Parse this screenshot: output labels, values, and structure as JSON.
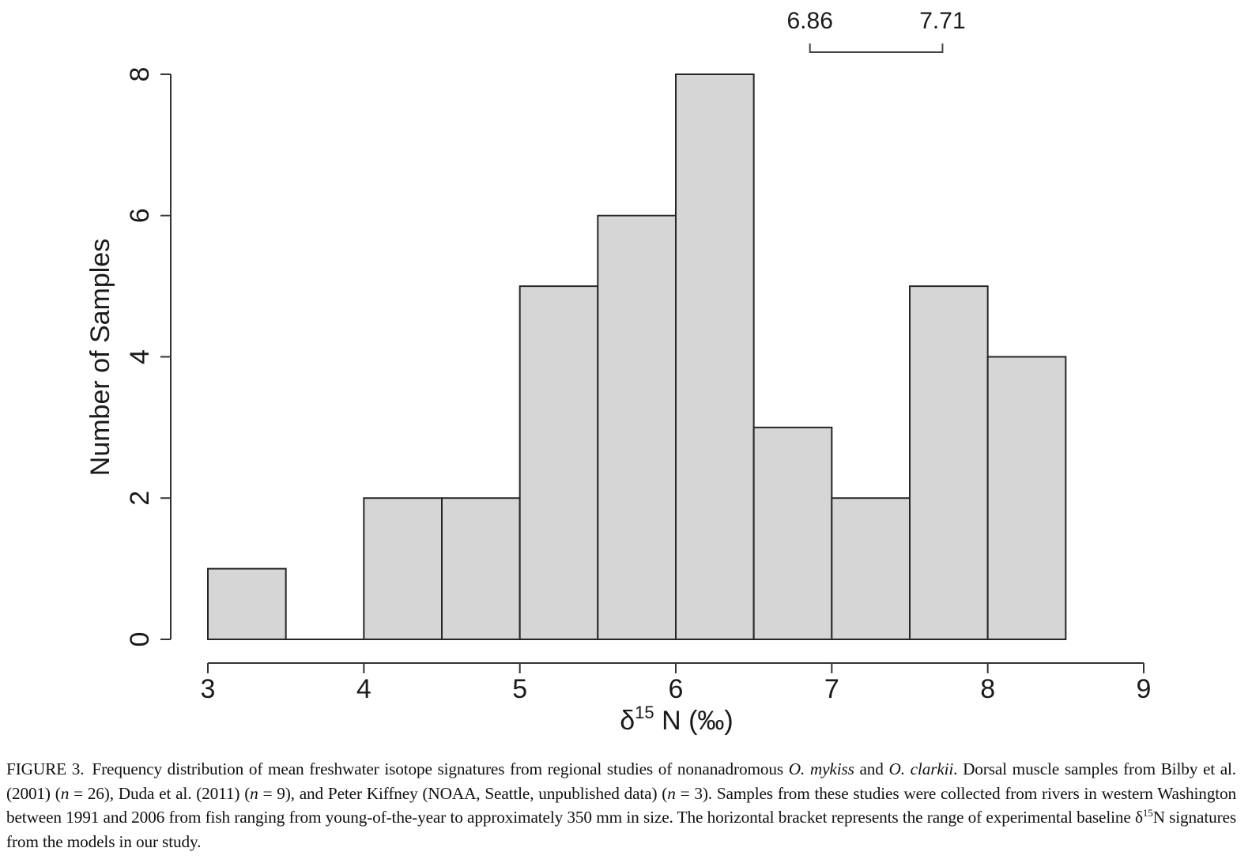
{
  "chart_data": {
    "type": "bar",
    "subtype": "histogram",
    "title": "",
    "xlabel": "δ15 N (‰)",
    "xlabel_parts": {
      "delta": "δ",
      "superscript": "15",
      "rest": " N (‰)"
    },
    "ylabel": "Number of Samples",
    "xlim": [
      3,
      9
    ],
    "ylim": [
      0,
      8
    ],
    "x_ticks": [
      3,
      4,
      5,
      6,
      7,
      8,
      9
    ],
    "y_ticks": [
      0,
      2,
      4,
      6,
      8
    ],
    "bin_width": 0.5,
    "bin_edges": [
      3.0,
      3.5,
      4.0,
      4.5,
      5.0,
      5.5,
      6.0,
      6.5,
      7.0,
      7.5,
      8.0,
      8.5
    ],
    "categories": [
      "3.0–3.5",
      "3.5–4.0",
      "4.0–4.5",
      "4.5–5.0",
      "5.0–5.5",
      "5.5–6.0",
      "6.0–6.5",
      "6.5–7.0",
      "7.0–7.5",
      "7.5–8.0",
      "8.0–8.5"
    ],
    "values": [
      1,
      0,
      2,
      2,
      5,
      6,
      8,
      3,
      2,
      5,
      4
    ],
    "bar_fill": "#d6d6d6",
    "bar_stroke": "#262626",
    "grid": false,
    "legend": null,
    "annotations": [
      {
        "type": "bracket",
        "from": 6.86,
        "to": 7.71,
        "label_left": "6.86",
        "label_right": "7.71",
        "position": "above plot"
      }
    ]
  },
  "caption": {
    "label": "FIGURE 3.",
    "segments": [
      {
        "text": "Frequency distribution of mean freshwater isotope signatures from regional studies of nonanadromous ",
        "style": "normal"
      },
      {
        "text": "O. mykiss",
        "style": "italic"
      },
      {
        "text": " and ",
        "style": "normal"
      },
      {
        "text": "O. clarkii",
        "style": "italic"
      },
      {
        "text": ". Dorsal muscle samples from Bilby et al. (2001) (",
        "style": "normal"
      },
      {
        "text": "n",
        "style": "italic"
      },
      {
        "text": " = 26), Duda et al. (2011) (",
        "style": "normal"
      },
      {
        "text": "n",
        "style": "italic"
      },
      {
        "text": " = 9), and Peter Kiffney (NOAA, Seattle, unpublished data) (",
        "style": "normal"
      },
      {
        "text": "n",
        "style": "italic"
      },
      {
        "text": " = 3). Samples from these studies were collected from rivers in western Washington between 1991 and 2006 from fish ranging from young-of-the-year to approximately 350 mm in size. The horizontal bracket represents the range of experimental baseline δ",
        "style": "normal"
      },
      {
        "text": "15",
        "style": "sup"
      },
      {
        "text": "N signatures from the models in our study.",
        "style": "normal"
      }
    ]
  }
}
